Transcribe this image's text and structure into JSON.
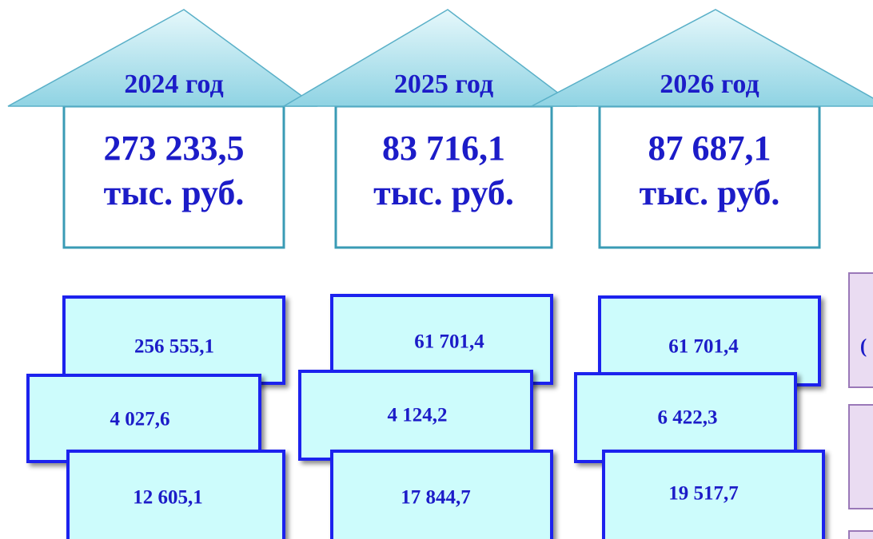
{
  "houses": [
    {
      "year": "2024 год",
      "amount": "273 233,5",
      "unit": "тыс. руб."
    },
    {
      "year": "2025 год",
      "amount": "83 716,1",
      "unit": "тыс. руб."
    },
    {
      "year": "2026 год",
      "amount": "87 687,1",
      "unit": "тыс. руб."
    }
  ],
  "stacks": [
    [
      "256 555,1",
      "4 027,6",
      "12 605,1"
    ],
    [
      "61 701,4",
      "4 124,2",
      "17 844,7"
    ],
    [
      "61 701,4",
      "6 422,3",
      "19 517,7"
    ]
  ],
  "side_boxes": [
    "("
  ]
}
